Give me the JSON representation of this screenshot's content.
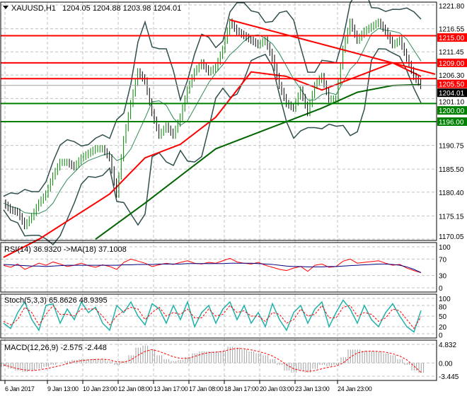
{
  "header": {
    "symbol": "XAUUSD,H1",
    "ohlc": "1204.05 1204.88 1203.98 1204.01"
  },
  "chart_data": [
    {
      "type": "line",
      "name": "price",
      "ylim": [
        1170.05,
        1221.8
      ],
      "yticks": [
        "1221.80",
        "1216.55",
        "1211.45",
        "1206.30",
        "1201.10",
        "1190.75",
        "1185.50",
        "1180.40",
        "1175.15",
        "1170.05"
      ],
      "current_price": {
        "value": 1204.01,
        "label": "1204.01"
      },
      "levels": [
        {
          "value": 1215.0,
          "label": "1215.00",
          "color": "#ff0000"
        },
        {
          "value": 1209.0,
          "label": "1209.00",
          "color": "#ff0000"
        },
        {
          "value": 1205.5,
          "label": "1205.50",
          "color": "#ff0000"
        },
        {
          "value": 1200.0,
          "label": "1200.00",
          "color": "#008000"
        },
        {
          "value": 1196.0,
          "label": "1196.00",
          "color": "#008000"
        }
      ],
      "trendline": {
        "from": [
          32,
          1218.5
        ],
        "to": [
          61,
          1206.5
        ],
        "color": "#ff0000"
      },
      "close": [
        1178,
        1176.5,
        1176,
        1173,
        1175,
        1178,
        1180,
        1184,
        1187,
        1187,
        1186,
        1188,
        1189,
        1190,
        1190,
        1188,
        1180,
        1192,
        1200,
        1207,
        1205,
        1198,
        1193,
        1195,
        1193,
        1197,
        1203,
        1207,
        1209,
        1207,
        1208,
        1212,
        1218,
        1216,
        1215,
        1214,
        1213,
        1214,
        1210,
        1204,
        1200,
        1199,
        1203,
        1198,
        1204,
        1206,
        1201,
        1201,
        1212,
        1218,
        1214,
        1216,
        1217,
        1218,
        1216,
        1213,
        1214,
        1210,
        1206,
        1204.01
      ],
      "ma_red": [
        [
          0,
          1166
        ],
        [
          5,
          1170
        ],
        [
          10,
          1175
        ],
        [
          15,
          1180
        ],
        [
          20,
          1188
        ],
        [
          25,
          1191
        ],
        [
          30,
          1197
        ],
        [
          35,
          1207
        ],
        [
          40,
          1206
        ],
        [
          45,
          1203
        ],
        [
          50,
          1206
        ],
        [
          55,
          1209
        ],
        [
          59,
          1206
        ]
      ],
      "ma_green": [
        [
          13,
          1170
        ],
        [
          20,
          1178
        ],
        [
          30,
          1190
        ],
        [
          40,
          1196
        ],
        [
          45,
          1199
        ],
        [
          50,
          1202.5
        ],
        [
          55,
          1204
        ],
        [
          59,
          1204.2
        ]
      ],
      "colors": {
        "up": "#008000",
        "down": "#000000",
        "ma_red": "#ff0000",
        "ma_green": "#006400",
        "bands": "#2f4f4f"
      }
    },
    {
      "type": "line",
      "name": "rsi",
      "label": "RSI(14) 36.9320  ->MA(18) 37.1008",
      "ylim": [
        0,
        100
      ],
      "yticks": [
        "100",
        "70",
        "30",
        "0"
      ],
      "rsi": [
        55,
        50,
        58,
        45,
        52,
        60,
        55,
        63,
        58,
        52,
        55,
        60,
        54,
        50,
        56,
        52,
        45,
        62,
        70,
        65,
        60,
        52,
        56,
        60,
        57,
        62,
        66,
        60,
        58,
        62,
        60,
        66,
        72,
        63,
        60,
        58,
        62,
        55,
        50,
        45,
        42,
        48,
        52,
        40,
        55,
        58,
        50,
        52,
        65,
        70,
        60,
        62,
        64,
        66,
        60,
        55,
        57,
        48,
        42,
        36.9
      ],
      "ma": [
        57,
        56,
        55,
        54,
        53,
        53,
        52,
        53,
        54,
        55,
        55,
        55,
        55,
        55,
        55,
        55,
        55,
        56,
        56,
        57,
        57,
        57,
        58,
        58,
        58,
        58,
        59,
        59,
        59,
        59,
        59,
        59,
        60,
        60,
        60,
        60,
        59,
        58,
        57,
        55,
        53,
        52,
        52,
        51,
        51,
        51,
        52,
        52,
        53,
        54,
        55,
        56,
        57,
        58,
        58,
        57,
        55,
        51,
        45,
        37.1
      ],
      "colors": {
        "rsi": "#ff0000",
        "ma": "#000080"
      }
    },
    {
      "type": "line",
      "name": "stochastic",
      "label": "Stoch(5,3,3) 65.8626 48.9395",
      "ylim": [
        0,
        100
      ],
      "yticks": [
        "100",
        "80",
        "50",
        "20",
        "0"
      ],
      "main": [
        30,
        15,
        60,
        90,
        40,
        10,
        80,
        85,
        30,
        70,
        40,
        90,
        60,
        75,
        30,
        10,
        80,
        60,
        90,
        50,
        25,
        85,
        70,
        30,
        80,
        40,
        90,
        20,
        60,
        80,
        30,
        70,
        90,
        40,
        80,
        30,
        60,
        20,
        85,
        40,
        10,
        60,
        80,
        30,
        70,
        90,
        20,
        60,
        95,
        70,
        30,
        80,
        40,
        20,
        60,
        85,
        50,
        20,
        5,
        65.9
      ],
      "signal": [
        35,
        25,
        40,
        75,
        60,
        25,
        55,
        80,
        55,
        55,
        50,
        70,
        70,
        70,
        50,
        25,
        50,
        65,
        75,
        70,
        40,
        60,
        75,
        50,
        60,
        55,
        70,
        45,
        45,
        70,
        50,
        55,
        80,
        60,
        65,
        50,
        50,
        35,
        60,
        55,
        30,
        40,
        70,
        50,
        55,
        80,
        45,
        45,
        75,
        80,
        50,
        60,
        55,
        35,
        45,
        70,
        65,
        40,
        15,
        48.9
      ],
      "colors": {
        "main": "#20b2aa",
        "signal": "#ff0000"
      }
    },
    {
      "type": "bar",
      "name": "macd",
      "label": "MACD(12,26,9) -2.575 -2.448",
      "ylim": [
        -3.445,
        4.832
      ],
      "yticks": [
        "4.832",
        "0.00",
        "-3.445"
      ],
      "histogram": [
        -1,
        -1.5,
        -2,
        -2.3,
        -2,
        -1.5,
        -1,
        -0.5,
        0,
        0.5,
        0.8,
        1,
        1,
        1.1,
        1,
        0.5,
        -0.5,
        0.5,
        2,
        4,
        4.5,
        3.5,
        2,
        1,
        0.5,
        0.8,
        1.5,
        2.5,
        3,
        3,
        3,
        3.2,
        4.2,
        4,
        3.5,
        3,
        2.5,
        2,
        1,
        -0.5,
        -2,
        -2.5,
        -2,
        -2.5,
        -1.5,
        -0.5,
        -0.8,
        -0.5,
        1.5,
        3.5,
        3.5,
        3.2,
        3,
        3,
        2.5,
        2,
        1,
        -0.5,
        -2,
        -2.575
      ],
      "signal": [
        -0.5,
        -1,
        -1.5,
        -1.8,
        -2,
        -1.8,
        -1.5,
        -1.1,
        -0.7,
        -0.2,
        0.3,
        0.6,
        0.8,
        0.9,
        1,
        0.8,
        0.3,
        0.2,
        0.8,
        2,
        3,
        3.5,
        3,
        2.3,
        1.6,
        1.2,
        1.2,
        1.7,
        2.3,
        2.7,
        2.8,
        3,
        3.5,
        3.8,
        3.7,
        3.4,
        3,
        2.5,
        1.8,
        0.8,
        -0.5,
        -1.5,
        -2,
        -2.2,
        -2,
        -1.5,
        -1.1,
        -0.8,
        0,
        1.5,
        2.6,
        3,
        3.1,
        3,
        2.8,
        2.4,
        1.8,
        0.8,
        -0.8,
        -2.448
      ],
      "colors": {
        "histogram": "#a0a0a0",
        "signal": "#ff0000"
      }
    },
    {
      "name": "time_axis",
      "xticks": [
        {
          "index": 0,
          "label": "6 Jan 2017"
        },
        {
          "index": 6,
          "label": "9 Jan 13:00"
        },
        {
          "index": 11,
          "label": "10 Jan 23:00"
        },
        {
          "index": 16,
          "label": "12 Jan 08:00"
        },
        {
          "index": 21,
          "label": "13 Jan 17:00"
        },
        {
          "index": 26,
          "label": "17 Jan 08:00"
        },
        {
          "index": 31,
          "label": "18 Jan 17:00"
        },
        {
          "index": 36,
          "label": "20 Jan 03:00"
        },
        {
          "index": 41,
          "label": "23 Jan 13:00"
        },
        {
          "index": 47,
          "label": "24 Jan 23:00"
        }
      ]
    }
  ]
}
